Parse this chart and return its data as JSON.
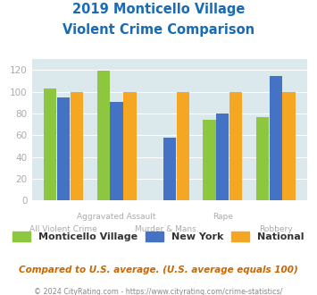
{
  "title_line1": "2019 Monticello Village",
  "title_line2": "Violent Crime Comparison",
  "categories_top": [
    "",
    "Aggravated Assault",
    "",
    "Rape",
    ""
  ],
  "categories_bottom": [
    "All Violent Crime",
    "",
    "Murder & Mans...",
    "",
    "Robbery"
  ],
  "monticello": [
    103,
    119,
    0,
    74,
    77
  ],
  "new_york": [
    95,
    91,
    58,
    80,
    114
  ],
  "national": [
    100,
    100,
    100,
    100,
    100
  ],
  "bar_colors": {
    "monticello": "#8dc63f",
    "new_york": "#4472c4",
    "national": "#f5a623"
  },
  "ylim": [
    0,
    130
  ],
  "yticks": [
    0,
    20,
    40,
    60,
    80,
    100,
    120
  ],
  "plot_bg": "#dce9ec",
  "title_color": "#1a6bb5",
  "subtitle": "Compared to U.S. average. (U.S. average equals 100)",
  "subtitle_color": "#cc6600",
  "footnote": "© 2024 CityRating.com - https://www.cityrating.com/crime-statistics/",
  "footnote_color": "#888888",
  "legend_labels": [
    "Monticello Village",
    "New York",
    "National"
  ],
  "tick_label_color": "#aaaaaa"
}
